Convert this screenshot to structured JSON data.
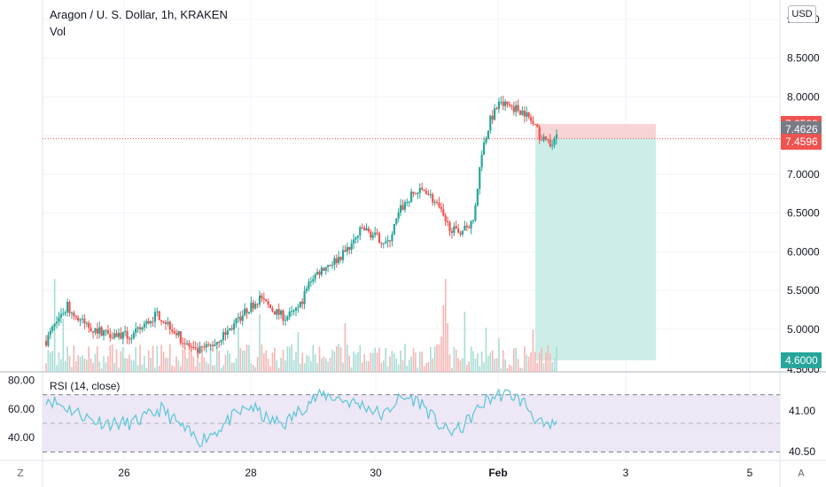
{
  "legend": {
    "title": "Aragon / U. S. Dollar, 1h, KRAKEN",
    "volume_label": "Vol",
    "rsi_label": "RSI (14, close)"
  },
  "currency": "USD",
  "controls": {
    "zoom_label": "Z",
    "auto_label": "A"
  },
  "colors": {
    "up": "#26a69a",
    "down": "#ef5350",
    "price_line": "#ef5350",
    "rsi_line": "#5bc6d6",
    "rsi_band": "#ede7f6",
    "target_zone": "#cdeee8",
    "stop_zone": "#f9d4d4",
    "axis_text": "#131722",
    "grid": "#f0f3fa"
  },
  "chart_data": [
    {
      "type": "candlestick",
      "title": "Aragon / U. S. Dollar, 1h, KRAKEN",
      "ylim": [
        4.45,
        9.25
      ],
      "y_ticks": [
        9.0,
        8.5,
        8.0,
        7.5,
        7.0,
        6.5,
        6.0,
        5.5,
        5.0
      ],
      "y_tick_labels": [
        "9.0000",
        "8.5000",
        "8.0000",
        "7.5000",
        "7.0000",
        "6.5000",
        "6.0000",
        "5.5000",
        "5.0000"
      ],
      "x_ticks": [
        "26",
        "28",
        "30",
        "Feb",
        "3",
        "5"
      ],
      "price_anchors": [
        [
          0,
          4.85
        ],
        [
          6,
          5.15
        ],
        [
          10,
          5.3
        ],
        [
          14,
          5.15
        ],
        [
          22,
          5.0
        ],
        [
          30,
          4.95
        ],
        [
          40,
          4.9
        ],
        [
          46,
          5.05
        ],
        [
          52,
          5.2
        ],
        [
          58,
          5.05
        ],
        [
          64,
          4.85
        ],
        [
          70,
          4.7
        ],
        [
          78,
          4.8
        ],
        [
          86,
          5.0
        ],
        [
          94,
          5.25
        ],
        [
          100,
          5.4
        ],
        [
          106,
          5.25
        ],
        [
          112,
          5.15
        ],
        [
          118,
          5.25
        ],
        [
          124,
          5.65
        ],
        [
          130,
          5.8
        ],
        [
          136,
          5.9
        ],
        [
          142,
          6.05
        ],
        [
          148,
          6.3
        ],
        [
          154,
          6.2
        ],
        [
          160,
          6.1
        ],
        [
          166,
          6.55
        ],
        [
          172,
          6.75
        ],
        [
          178,
          6.8
        ],
        [
          184,
          6.55
        ],
        [
          188,
          6.35
        ],
        [
          192,
          6.25
        ],
        [
          196,
          6.3
        ],
        [
          200,
          6.4
        ],
        [
          204,
          7.3
        ],
        [
          208,
          7.7
        ],
        [
          212,
          7.9
        ],
        [
          216,
          7.9
        ],
        [
          220,
          7.85
        ],
        [
          224,
          7.8
        ],
        [
          228,
          7.65
        ],
        [
          232,
          7.45
        ],
        [
          236,
          7.42
        ],
        [
          239,
          7.46
        ]
      ],
      "current_price": "7.4596",
      "volume": "shown as bars under price"
    },
    {
      "type": "line",
      "name": "RSI (14, close)",
      "y_ticks": [
        80.0,
        60.0,
        40.0
      ],
      "y_tick_labels": [
        "80.00",
        "60.00",
        "40.00"
      ],
      "band": [
        30,
        70
      ],
      "ylim": [
        24,
        86
      ],
      "rsi_anchors": [
        [
          0,
          68
        ],
        [
          8,
          62
        ],
        [
          14,
          58
        ],
        [
          22,
          52
        ],
        [
          30,
          50
        ],
        [
          40,
          50
        ],
        [
          48,
          55
        ],
        [
          54,
          60
        ],
        [
          60,
          52
        ],
        [
          66,
          44
        ],
        [
          72,
          38
        ],
        [
          80,
          45
        ],
        [
          88,
          55
        ],
        [
          96,
          62
        ],
        [
          104,
          52
        ],
        [
          112,
          50
        ],
        [
          118,
          58
        ],
        [
          124,
          66
        ],
        [
          130,
          70
        ],
        [
          136,
          68
        ],
        [
          142,
          65
        ],
        [
          150,
          62
        ],
        [
          158,
          55
        ],
        [
          164,
          66
        ],
        [
          170,
          68
        ],
        [
          176,
          64
        ],
        [
          182,
          52
        ],
        [
          188,
          44
        ],
        [
          194,
          46
        ],
        [
          200,
          56
        ],
        [
          206,
          66
        ],
        [
          212,
          70
        ],
        [
          218,
          70
        ],
        [
          224,
          64
        ],
        [
          230,
          52
        ],
        [
          234,
          46
        ],
        [
          239,
          50
        ]
      ]
    }
  ],
  "position": {
    "entry_label": "7.4626",
    "stop_label": "7.6508",
    "target_label": "4.6000",
    "entry": 7.4626,
    "stop": 7.6508,
    "target": 4.6
  },
  "right_axis_secondary": {
    "top_label": "4.5000",
    "rsi_right_labels": [
      "41.00",
      "40.50"
    ]
  }
}
